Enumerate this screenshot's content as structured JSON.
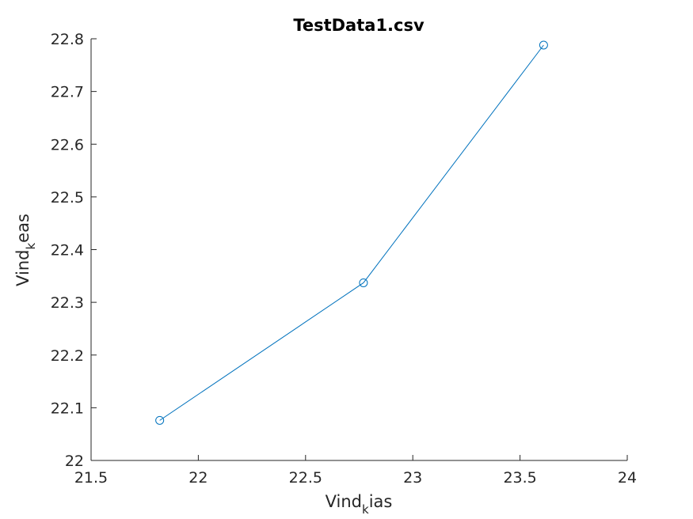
{
  "chart_data": {
    "type": "line",
    "title": "TestData1.csv",
    "xlabel": {
      "base": "Vind",
      "sub": "k",
      "rest": "ias"
    },
    "ylabel": {
      "base": "Vind",
      "sub": "k",
      "rest": "eas"
    },
    "xlim": [
      21.5,
      24
    ],
    "ylim": [
      22,
      22.8
    ],
    "xticks": [
      21.5,
      22,
      22.5,
      23,
      23.5,
      24
    ],
    "yticks": [
      22,
      22.1,
      22.2,
      22.3,
      22.4,
      22.5,
      22.6,
      22.7,
      22.8
    ],
    "xtick_labels": [
      "21.5",
      "22",
      "22.5",
      "23",
      "23.5",
      "24"
    ],
    "ytick_labels": [
      "22",
      "22.1",
      "22.2",
      "22.3",
      "22.4",
      "22.5",
      "22.6",
      "22.7",
      "22.8"
    ],
    "grid": false,
    "marker": "circle",
    "series": [
      {
        "x": [
          21.82,
          22.77,
          23.61
        ],
        "y": [
          22.076,
          22.337,
          22.788
        ],
        "color": "#0072BD"
      }
    ]
  }
}
